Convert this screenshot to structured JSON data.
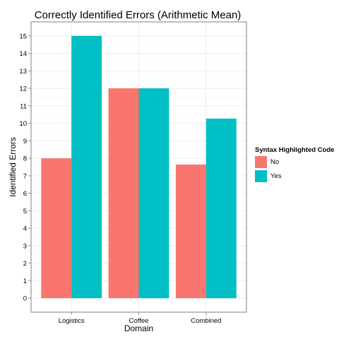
{
  "chart_data": {
    "type": "bar",
    "title": "Correctly Identified Errors (Arithmetic Mean)",
    "xlabel": "Domain",
    "ylabel": "Identified Errors",
    "categories": [
      "Logistics",
      "Coffee",
      "Combined"
    ],
    "series": [
      {
        "name": "No",
        "color": "#F8766D",
        "values": [
          8,
          12,
          7.64
        ]
      },
      {
        "name": "Yes",
        "color": "#00BFC4",
        "values": [
          15,
          12,
          10.27
        ]
      }
    ],
    "ylim": [
      -0.8,
      15.8
    ],
    "yticks": [
      0,
      1,
      2,
      3,
      4,
      5,
      6,
      7,
      8,
      9,
      10,
      11,
      12,
      13,
      14,
      15
    ],
    "grid": true,
    "legend": {
      "title": "Syntax Highlighted Code",
      "placement": "right"
    }
  }
}
